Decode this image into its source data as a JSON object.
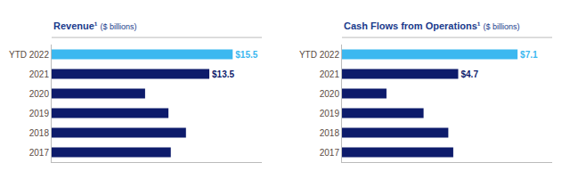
{
  "chart_data": [
    {
      "type": "bar",
      "orientation": "horizontal",
      "title": "Revenue¹",
      "subtitle": "($ billions)",
      "categories": [
        "YTD 2022",
        "2021",
        "2020",
        "2019",
        "2018",
        "2017"
      ],
      "values": [
        15.5,
        13.5,
        8.0,
        10.0,
        11.5,
        10.2
      ],
      "value_labels": [
        "$15.5",
        "$13.5",
        null,
        null,
        null,
        null
      ],
      "colors": [
        "#3BB8F0",
        "#0D1B6B",
        "#0D1B6B",
        "#0D1B6B",
        "#0D1B6B",
        "#0D1B6B"
      ],
      "xlim": [
        0,
        18.0
      ],
      "tick_labels": "y",
      "grid": false
    },
    {
      "type": "bar",
      "orientation": "horizontal",
      "title": "Cash Flows from Operations¹",
      "subtitle": "($ billions)",
      "categories": [
        "YTD 2022",
        "2021",
        "2020",
        "2019",
        "2018",
        "2017"
      ],
      "values": [
        7.1,
        4.7,
        1.8,
        3.3,
        4.3,
        4.5
      ],
      "value_labels": [
        "$7.1",
        "$4.7",
        null,
        null,
        null,
        null
      ],
      "colors": [
        "#3BB8F0",
        "#0D1B6B",
        "#0D1B6B",
        "#0D1B6B",
        "#0D1B6B",
        "#0D1B6B"
      ],
      "xlim": [
        0,
        8.5
      ],
      "tick_labels": "y",
      "grid": false
    }
  ]
}
